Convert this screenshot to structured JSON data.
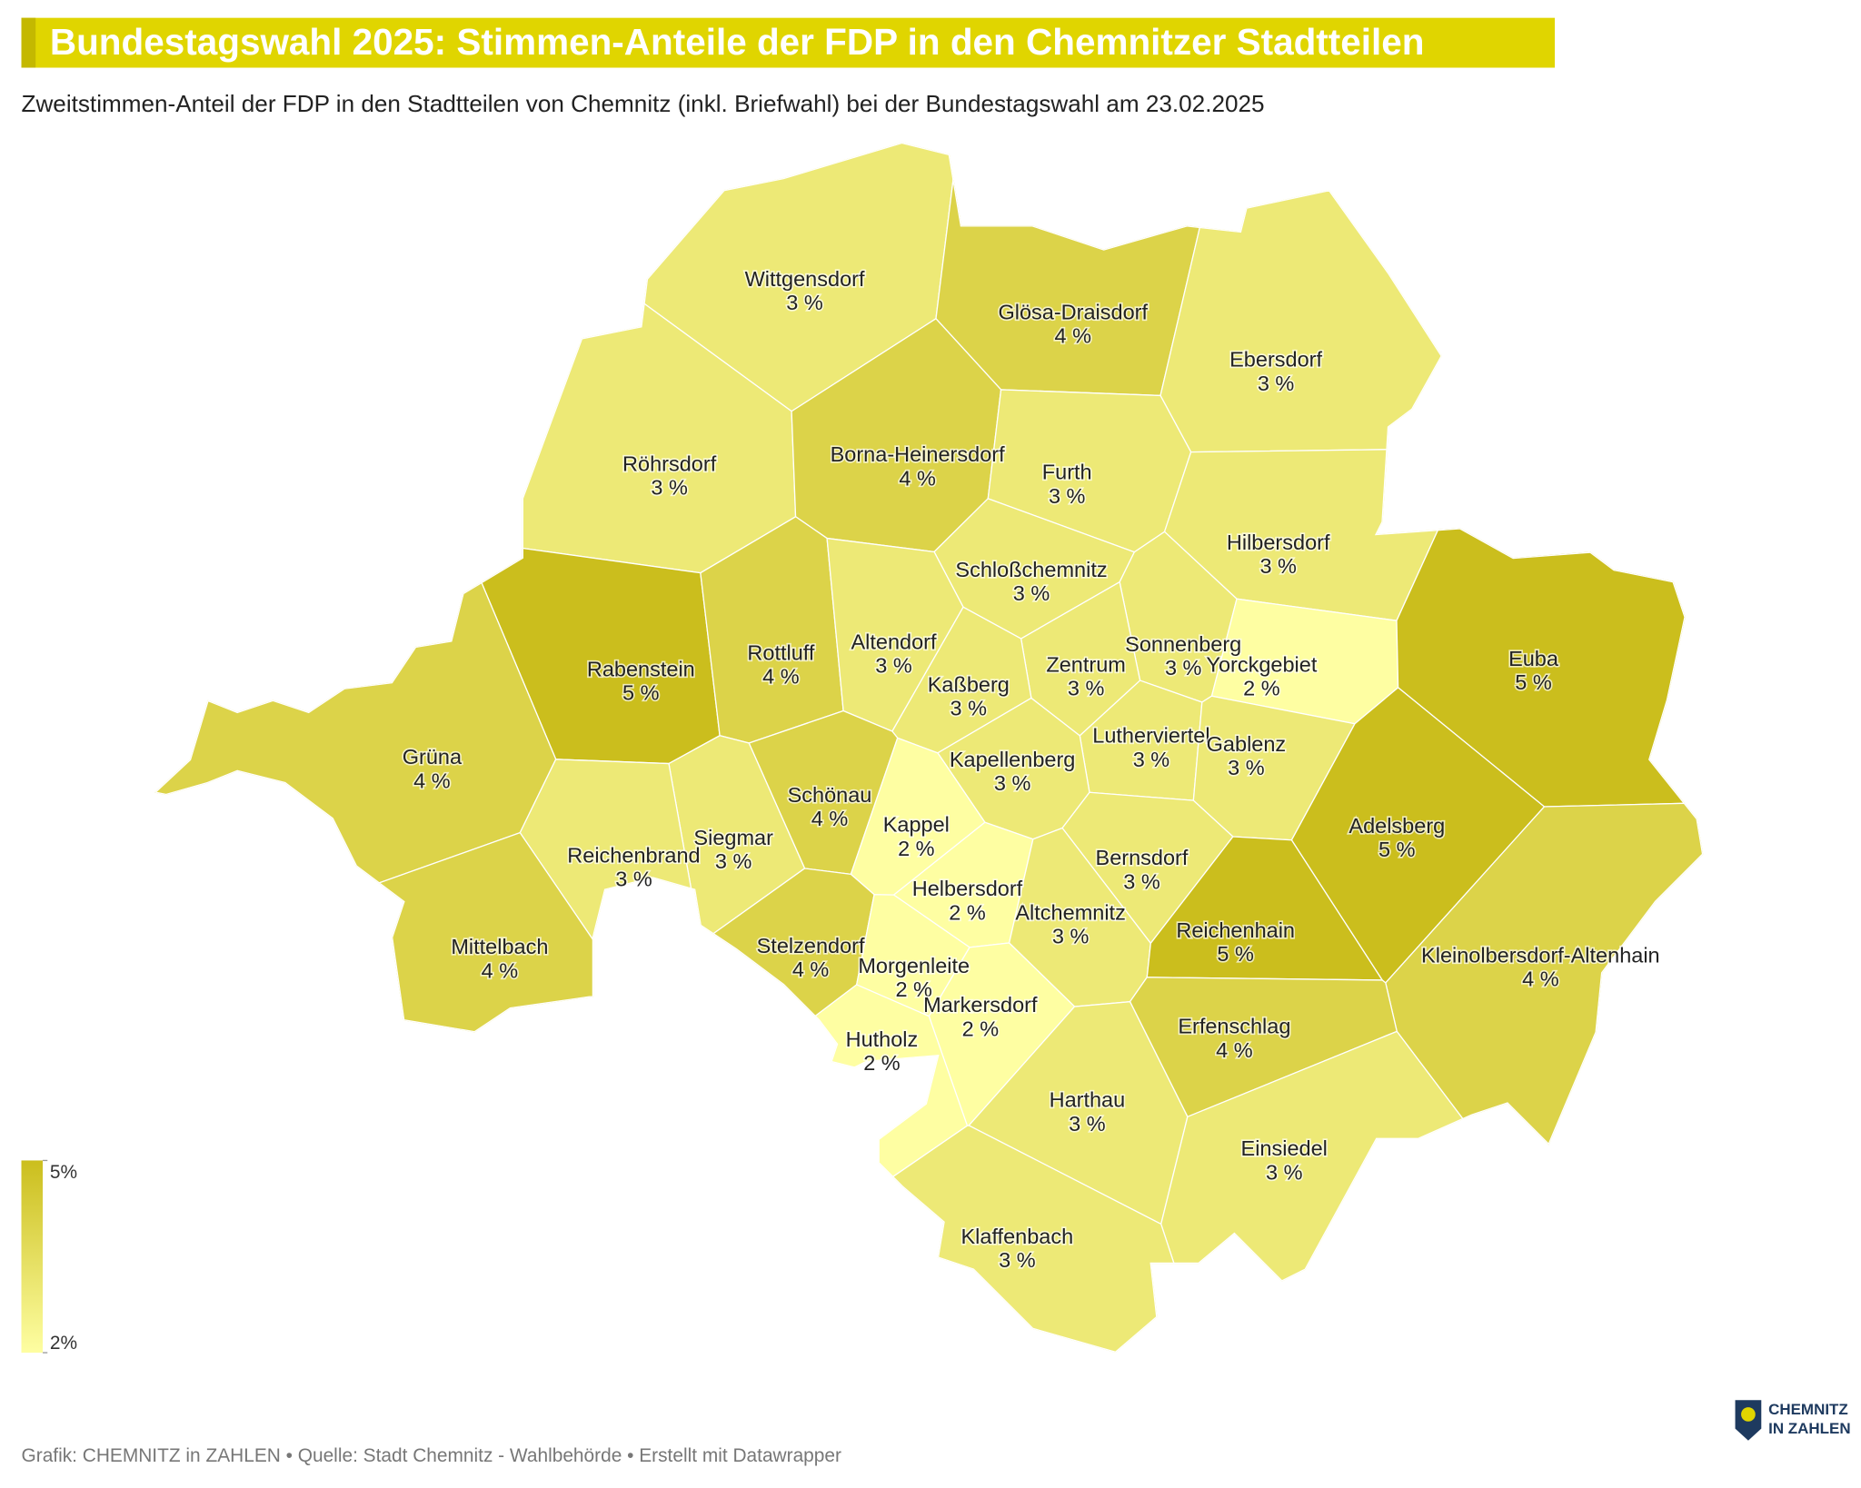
{
  "chart_data": {
    "type": "map",
    "title": "Bundestagswahl 2025: Stimmen-Anteile der FDP in den Chemnitzer Stadtteilen",
    "subtitle": "Zweitstimmen-Anteil der FDP in den Stadtteilen von Chemnitz (inkl. Briefwahl) bei der Bundestagswahl am 23.02.2025",
    "categories": [
      "Wittgensdorf",
      "Glösa-Draisdorf",
      "Ebersdorf",
      "Röhrsdorf",
      "Borna-Heinersdorf",
      "Furth",
      "Hilbersdorf",
      "Schloßchemnitz",
      "Rabenstein",
      "Rottluff",
      "Altendorf",
      "Sonnenberg",
      "Yorckgebiet",
      "Zentrum",
      "Kaßberg",
      "Euba",
      "Grüna",
      "Lutherviertel",
      "Gablenz",
      "Kapellenberg",
      "Schönau",
      "Adelsberg",
      "Kappel",
      "Siegmar",
      "Reichenbrand",
      "Bernsdorf",
      "Helbersdorf",
      "Altchemnitz",
      "Mittelbach",
      "Reichenhain",
      "Stelzendorf",
      "Kleinolbersdorf-Altenhain",
      "Morgenleite",
      "Markersdorf",
      "Erfenschlag",
      "Hutholz",
      "Harthau",
      "Einsiedel",
      "Klaffenbach"
    ],
    "values": [
      3,
      4,
      3,
      3,
      4,
      3,
      3,
      3,
      5,
      4,
      3,
      3,
      2,
      3,
      3,
      5,
      4,
      3,
      3,
      3,
      4,
      5,
      2,
      3,
      3,
      3,
      2,
      3,
      4,
      5,
      4,
      4,
      2,
      2,
      4,
      2,
      3,
      3,
      3
    ],
    "value_labels": [
      "3 %",
      "4 %",
      "3 %",
      "3 %",
      "4 %",
      "3 %",
      "3 %",
      "3 %",
      "5 %",
      "4 %",
      "3 %",
      "3 %",
      "2 %",
      "3 %",
      "3 %",
      "5 %",
      "4 %",
      "3 %",
      "3 %",
      "3 %",
      "4 %",
      "5 %",
      "2 %",
      "3 %",
      "3 %",
      "3 %",
      "2 %",
      "3 %",
      "4 %",
      "5 %",
      "4 %",
      "4 %",
      "2 %",
      "2 %",
      "4 %",
      "2 %",
      "3 %",
      "3 %",
      "3 %"
    ],
    "colorscale": {
      "colors": [
        "#fefea2",
        "#cbbe1d"
      ],
      "range": [
        2,
        5
      ],
      "ticks": [
        {
          "value": 5,
          "label": "5%"
        },
        {
          "value": 2,
          "label": "2%"
        }
      ]
    },
    "footer": "Grafik: CHEMNITZ in ZAHLEN • Quelle: Stadt Chemnitz - Wahlbehörde • Erstellt mit Datawrapper",
    "logo": [
      "CHEMNITZ",
      "IN ZAHLEN"
    ]
  }
}
